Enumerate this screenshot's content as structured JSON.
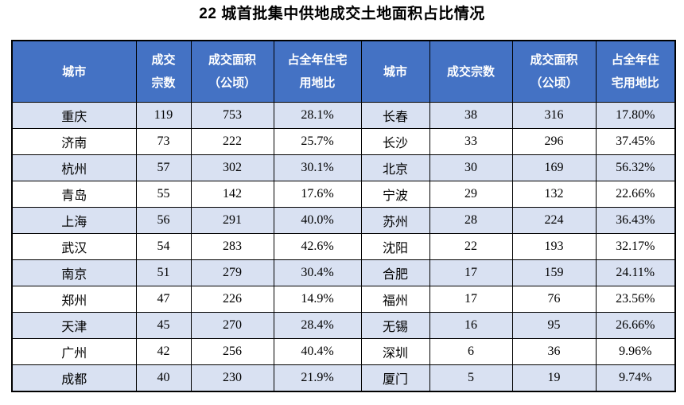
{
  "title": "22 城首批集中供地成交土地面积占比情况",
  "colors": {
    "header_bg": "#4472C4",
    "header_text": "#FFFFFF",
    "stripe_bg": "#D9E1F2",
    "border": "#000000",
    "title_text": "#000000"
  },
  "table": {
    "headers": [
      [
        "城市"
      ],
      [
        "成交",
        "宗数"
      ],
      [
        "成交面积",
        "（公顷）"
      ],
      [
        "占全年住宅",
        "用地比"
      ],
      [
        "城市"
      ],
      [
        "成交宗数"
      ],
      [
        "成交面积",
        "（公顷）"
      ],
      [
        "占全年住",
        "宅用地比"
      ]
    ],
    "rows": [
      [
        "重庆",
        "119",
        "753",
        "28.1%",
        "长春",
        "38",
        "316",
        "17.80%"
      ],
      [
        "济南",
        "73",
        "222",
        "25.7%",
        "长沙",
        "33",
        "296",
        "37.45%"
      ],
      [
        "杭州",
        "57",
        "302",
        "30.1%",
        "北京",
        "30",
        "169",
        "56.32%"
      ],
      [
        "青岛",
        "55",
        "142",
        "17.6%",
        "宁波",
        "29",
        "132",
        "22.66%"
      ],
      [
        "上海",
        "56",
        "291",
        "40.0%",
        "苏州",
        "28",
        "224",
        "36.43%"
      ],
      [
        "武汉",
        "54",
        "283",
        "42.6%",
        "沈阳",
        "22",
        "193",
        "32.17%"
      ],
      [
        "南京",
        "51",
        "279",
        "30.4%",
        "合肥",
        "17",
        "159",
        "24.11%"
      ],
      [
        "郑州",
        "47",
        "226",
        "14.9%",
        "福州",
        "17",
        "76",
        "23.56%"
      ],
      [
        "天津",
        "45",
        "270",
        "28.4%",
        "无锡",
        "16",
        "95",
        "26.66%"
      ],
      [
        "广州",
        "42",
        "256",
        "40.4%",
        "深圳",
        "6",
        "36",
        "9.96%"
      ],
      [
        "成都",
        "40",
        "230",
        "21.9%",
        "厦门",
        "5",
        "19",
        "9.74%"
      ]
    ]
  },
  "chart_data": {
    "type": "table",
    "title": "22 城首批集中供地成交土地面积占比情况",
    "columns": [
      "城市",
      "成交宗数",
      "成交面积（公顷）",
      "占全年住宅用地比"
    ],
    "records": [
      {
        "city": "重庆",
        "deal_count": 119,
        "area_hectares": 753,
        "share_of_annual_residential_land": "28.1%"
      },
      {
        "city": "济南",
        "deal_count": 73,
        "area_hectares": 222,
        "share_of_annual_residential_land": "25.7%"
      },
      {
        "city": "杭州",
        "deal_count": 57,
        "area_hectares": 302,
        "share_of_annual_residential_land": "30.1%"
      },
      {
        "city": "青岛",
        "deal_count": 55,
        "area_hectares": 142,
        "share_of_annual_residential_land": "17.6%"
      },
      {
        "city": "上海",
        "deal_count": 56,
        "area_hectares": 291,
        "share_of_annual_residential_land": "40.0%"
      },
      {
        "city": "武汉",
        "deal_count": 54,
        "area_hectares": 283,
        "share_of_annual_residential_land": "42.6%"
      },
      {
        "city": "南京",
        "deal_count": 51,
        "area_hectares": 279,
        "share_of_annual_residential_land": "30.4%"
      },
      {
        "city": "郑州",
        "deal_count": 47,
        "area_hectares": 226,
        "share_of_annual_residential_land": "14.9%"
      },
      {
        "city": "天津",
        "deal_count": 45,
        "area_hectares": 270,
        "share_of_annual_residential_land": "28.4%"
      },
      {
        "city": "广州",
        "deal_count": 42,
        "area_hectares": 256,
        "share_of_annual_residential_land": "40.4%"
      },
      {
        "city": "成都",
        "deal_count": 40,
        "area_hectares": 230,
        "share_of_annual_residential_land": "21.9%"
      },
      {
        "city": "长春",
        "deal_count": 38,
        "area_hectares": 316,
        "share_of_annual_residential_land": "17.80%"
      },
      {
        "city": "长沙",
        "deal_count": 33,
        "area_hectares": 296,
        "share_of_annual_residential_land": "37.45%"
      },
      {
        "city": "北京",
        "deal_count": 30,
        "area_hectares": 169,
        "share_of_annual_residential_land": "56.32%"
      },
      {
        "city": "宁波",
        "deal_count": 29,
        "area_hectares": 132,
        "share_of_annual_residential_land": "22.66%"
      },
      {
        "city": "苏州",
        "deal_count": 28,
        "area_hectares": 224,
        "share_of_annual_residential_land": "36.43%"
      },
      {
        "city": "沈阳",
        "deal_count": 22,
        "area_hectares": 193,
        "share_of_annual_residential_land": "32.17%"
      },
      {
        "city": "合肥",
        "deal_count": 17,
        "area_hectares": 159,
        "share_of_annual_residential_land": "24.11%"
      },
      {
        "city": "福州",
        "deal_count": 17,
        "area_hectares": 76,
        "share_of_annual_residential_land": "23.56%"
      },
      {
        "city": "无锡",
        "deal_count": 16,
        "area_hectares": 95,
        "share_of_annual_residential_land": "26.66%"
      },
      {
        "city": "深圳",
        "deal_count": 6,
        "area_hectares": 36,
        "share_of_annual_residential_land": "9.96%"
      },
      {
        "city": "厦门",
        "deal_count": 5,
        "area_hectares": 19,
        "share_of_annual_residential_land": "9.74%"
      }
    ]
  }
}
